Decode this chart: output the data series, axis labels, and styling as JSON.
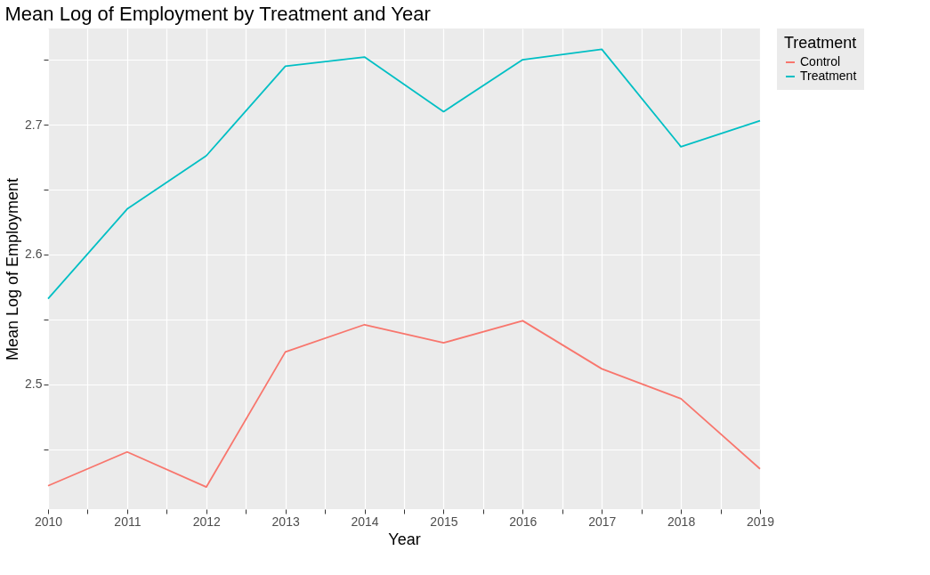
{
  "chart_data": {
    "type": "line",
    "title": "Mean Log of Employment by Treatment and Year",
    "xlabel": "Year",
    "ylabel": "Mean Log of Employment",
    "legend_title": "Treatment",
    "x": [
      2010,
      2011,
      2012,
      2013,
      2014,
      2015,
      2016,
      2017,
      2018,
      2019
    ],
    "series": [
      {
        "name": "Control",
        "color": "#f8766d",
        "values": [
          2.422,
          2.448,
          2.421,
          2.525,
          2.546,
          2.532,
          2.549,
          2.512,
          2.489,
          2.435
        ]
      },
      {
        "name": "Treatment",
        "color": "#00bfc4",
        "values": [
          2.566,
          2.635,
          2.676,
          2.745,
          2.752,
          2.71,
          2.75,
          2.758,
          2.683,
          2.703
        ]
      }
    ],
    "xlim": [
      2010,
      2019
    ],
    "xticks": [
      2010,
      {
        "value": 2010.5,
        "label": null
      },
      2011,
      {
        "value": 2011.5,
        "label": null
      },
      2012,
      {
        "value": 2012.5,
        "label": null
      },
      2013,
      {
        "value": 2013.5,
        "label": null
      },
      2014,
      {
        "value": 2014.5,
        "label": null
      },
      2015,
      {
        "value": 2015.5,
        "label": null
      },
      2016,
      {
        "value": 2016.5,
        "label": null
      },
      2017,
      {
        "value": 2017.5,
        "label": null
      },
      2018,
      {
        "value": 2018.5,
        "label": null
      },
      2019
    ],
    "ylim": [
      2.404,
      2.774
    ],
    "yticks": [
      {
        "value": 2.45,
        "label": null
      },
      2.5,
      {
        "value": 2.55,
        "label": null
      },
      2.6,
      {
        "value": 2.65,
        "label": null
      },
      2.7,
      {
        "value": 2.75,
        "label": null
      }
    ],
    "grid": true,
    "legend": "right",
    "marker": "none",
    "line_style": "solid"
  }
}
